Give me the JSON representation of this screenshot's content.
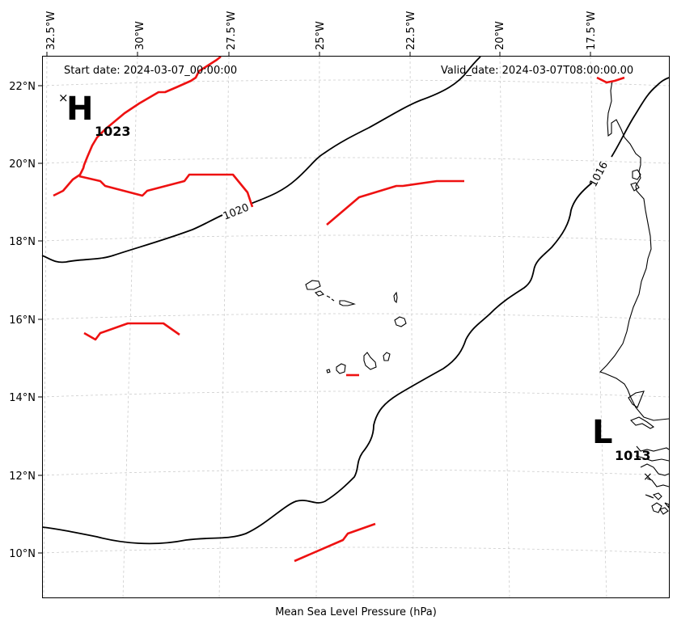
{
  "map": {
    "start_date": "Start date: 2024-03-07_00:00:00",
    "valid_date": "Valid_date: 2024-03-07T08:00:00.00",
    "caption": "Mean Sea Level Pressure (hPa)",
    "longitude_labels": [
      "32.5°W",
      "30°W",
      "27.5°W",
      "25°W",
      "22.5°W",
      "20°W",
      "17.5°W"
    ],
    "latitude_labels": [
      "22°N",
      "20°N",
      "18°N",
      "16°N",
      "14°N",
      "12°N",
      "10°N"
    ],
    "pressure_centers": {
      "high": {
        "letter": "H",
        "value": "1023"
      },
      "low": {
        "letter": "L",
        "value": "1013"
      }
    },
    "isobar_labels": [
      "1020",
      "1016"
    ],
    "colors": {
      "isobar": "#000000",
      "front": "#ee1111",
      "grid": "#cccccc"
    }
  }
}
